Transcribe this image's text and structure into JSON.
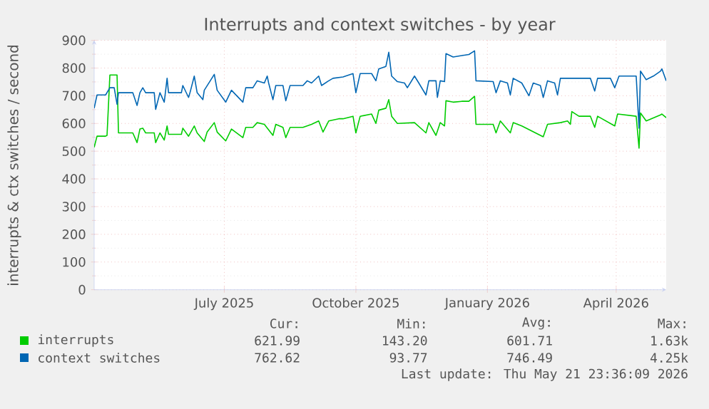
{
  "chart_data": {
    "type": "line",
    "title": "Interrupts and context switches - by year",
    "ylabel": "interrupts & ctx switches / second",
    "xlim": [
      "2025-04-16",
      "2026-05-21"
    ],
    "xticks": [
      {
        "value": "2025-07-16",
        "label": "July 2025"
      },
      {
        "value": "2025-10-16",
        "label": "October 2025"
      },
      {
        "value": "2026-01-16",
        "label": "January 2026"
      },
      {
        "value": "2026-04-16",
        "label": "April 2026"
      }
    ],
    "ylim": [
      0,
      900
    ],
    "yticks": [
      0,
      100,
      200,
      300,
      400,
      500,
      600,
      700,
      800,
      900
    ],
    "grid": true,
    "legend": "bottom",
    "marker": "none",
    "line_style": "solid",
    "series": [
      {
        "name": "interrupts",
        "color": "#00cc00",
        "x": [
          "2025-04-16",
          "2025-04-18",
          "2025-04-24",
          "2025-04-25",
          "2025-04-27",
          "2025-05-02",
          "2025-05-03",
          "2025-05-13",
          "2025-05-16",
          "2025-05-18",
          "2025-05-20",
          "2025-05-22",
          "2025-05-28",
          "2025-05-29",
          "2025-06-01",
          "2025-06-04",
          "2025-06-06",
          "2025-06-07",
          "2025-06-16",
          "2025-06-17",
          "2025-06-21",
          "2025-06-25",
          "2025-06-27",
          "2025-07-02",
          "2025-07-04",
          "2025-07-09",
          "2025-07-11",
          "2025-07-17",
          "2025-07-21",
          "2025-07-29",
          "2025-07-31",
          "2025-08-05",
          "2025-08-08",
          "2025-08-13",
          "2025-08-19",
          "2025-08-21",
          "2025-08-26",
          "2025-08-28",
          "2025-08-31",
          "2025-09-09",
          "2025-09-15",
          "2025-09-20",
          "2025-09-23",
          "2025-09-27",
          "2025-10-04",
          "2025-10-07",
          "2025-10-14",
          "2025-10-16",
          "2025-10-19",
          "2025-10-27",
          "2025-10-30",
          "2025-11-01",
          "2025-11-06",
          "2025-11-08",
          "2025-11-10",
          "2025-11-14",
          "2025-11-26",
          "2025-12-04",
          "2025-12-06",
          "2025-12-11",
          "2025-12-14",
          "2025-12-17",
          "2025-12-18",
          "2025-12-23",
          "2025-12-29",
          "2026-01-03",
          "2026-01-07",
          "2026-01-08",
          "2026-01-20",
          "2026-01-22",
          "2026-01-25",
          "2026-02-01",
          "2026-02-03",
          "2026-02-09",
          "2026-02-24",
          "2026-02-27",
          "2026-03-08",
          "2026-03-13",
          "2026-03-15",
          "2026-03-16",
          "2026-03-21",
          "2026-03-29",
          "2026-04-01",
          "2026-04-03",
          "2026-04-15",
          "2026-04-17",
          "2026-04-30",
          "2026-05-02",
          "2026-05-03",
          "2026-05-07",
          "2026-05-17",
          "2026-05-18",
          "2026-05-21"
        ],
        "values": [
          514,
          554,
          554,
          557,
          775,
          775,
          566,
          566,
          531,
          580,
          583,
          566,
          566,
          531,
          566,
          540,
          591,
          561,
          561,
          583,
          554,
          591,
          566,
          535,
          569,
          603,
          569,
          537,
          580,
          549,
          586,
          586,
          603,
          597,
          557,
          597,
          586,
          549,
          586,
          586,
          597,
          609,
          569,
          609,
          617,
          617,
          626,
          566,
          626,
          634,
          600,
          648,
          655,
          686,
          626,
          600,
          603,
          566,
          603,
          557,
          603,
          591,
          682,
          677,
          680,
          680,
          698,
          597,
          597,
          566,
          609,
          566,
          603,
          591,
          552,
          597,
          603,
          609,
          597,
          643,
          626,
          626,
          586,
          626,
          591,
          634,
          626,
          511,
          638,
          609,
          631,
          634,
          621
        ]
      },
      {
        "name": "context switches",
        "color": "#0066b3",
        "x": [
          "2025-04-16",
          "2025-04-18",
          "2025-04-24",
          "2025-04-27",
          "2025-04-30",
          "2025-05-02",
          "2025-05-03",
          "2025-05-13",
          "2025-05-16",
          "2025-05-18",
          "2025-05-20",
          "2025-05-22",
          "2025-05-28",
          "2025-05-29",
          "2025-06-01",
          "2025-06-04",
          "2025-06-06",
          "2025-06-07",
          "2025-06-16",
          "2025-06-17",
          "2025-06-21",
          "2025-06-22",
          "2025-06-25",
          "2025-06-27",
          "2025-07-01",
          "2025-07-02",
          "2025-07-09",
          "2025-07-11",
          "2025-07-17",
          "2025-07-21",
          "2025-07-29",
          "2025-07-31",
          "2025-08-05",
          "2025-08-08",
          "2025-08-13",
          "2025-08-15",
          "2025-08-16",
          "2025-08-19",
          "2025-08-21",
          "2025-08-26",
          "2025-08-28",
          "2025-08-31",
          "2025-09-09",
          "2025-09-12",
          "2025-09-15",
          "2025-09-20",
          "2025-09-22",
          "2025-09-27",
          "2025-09-30",
          "2025-10-07",
          "2025-10-14",
          "2025-10-16",
          "2025-10-19",
          "2025-10-27",
          "2025-10-30",
          "2025-11-01",
          "2025-11-06",
          "2025-11-08",
          "2025-11-10",
          "2025-11-14",
          "2025-11-19",
          "2025-11-21",
          "2025-11-26",
          "2025-11-29",
          "2025-12-04",
          "2025-12-06",
          "2025-12-11",
          "2025-12-12",
          "2025-12-14",
          "2025-12-17",
          "2025-12-18",
          "2025-12-23",
          "2025-12-29",
          "2026-01-03",
          "2026-01-07",
          "2026-01-08",
          "2026-01-20",
          "2026-01-22",
          "2026-01-25",
          "2026-01-30",
          "2026-02-01",
          "2026-02-03",
          "2026-02-09",
          "2026-02-14",
          "2026-02-17",
          "2026-02-22",
          "2026-02-24",
          "2026-02-27",
          "2026-03-04",
          "2026-03-06",
          "2026-03-08",
          "2026-03-16",
          "2026-03-29",
          "2026-04-01",
          "2026-04-03",
          "2026-04-12",
          "2026-04-15",
          "2026-04-18",
          "2026-04-30",
          "2026-05-02",
          "2026-05-03",
          "2026-05-07",
          "2026-05-12",
          "2026-05-17",
          "2026-05-18",
          "2026-05-21"
        ],
        "values": [
          655,
          703,
          703,
          729,
          729,
          669,
          711,
          711,
          665,
          711,
          729,
          711,
          711,
          651,
          711,
          677,
          763,
          711,
          711,
          737,
          694,
          711,
          771,
          711,
          686,
          720,
          777,
          720,
          677,
          720,
          677,
          729,
          729,
          754,
          746,
          771,
          746,
          686,
          737,
          737,
          682,
          737,
          737,
          754,
          746,
          771,
          737,
          754,
          763,
          768,
          780,
          711,
          780,
          780,
          754,
          797,
          806,
          857,
          771,
          751,
          746,
          729,
          771,
          746,
          703,
          754,
          754,
          694,
          754,
          751,
          852,
          840,
          845,
          849,
          862,
          754,
          751,
          711,
          754,
          746,
          703,
          763,
          746,
          700,
          746,
          737,
          694,
          754,
          746,
          703,
          763,
          763,
          763,
          717,
          763,
          763,
          729,
          771,
          771,
          583,
          789,
          758,
          771,
          789,
          797,
          754
        ]
      }
    ],
    "annotations": [
      "Cur:",
      "Min:",
      "Avg:",
      "Max:",
      "621.99",
      "143.20",
      "601.71",
      "1.63k",
      "762.62",
      "93.77",
      "746.49",
      "4.25k",
      "Last update: Thu May 21 23:36:09 2026"
    ]
  }
}
